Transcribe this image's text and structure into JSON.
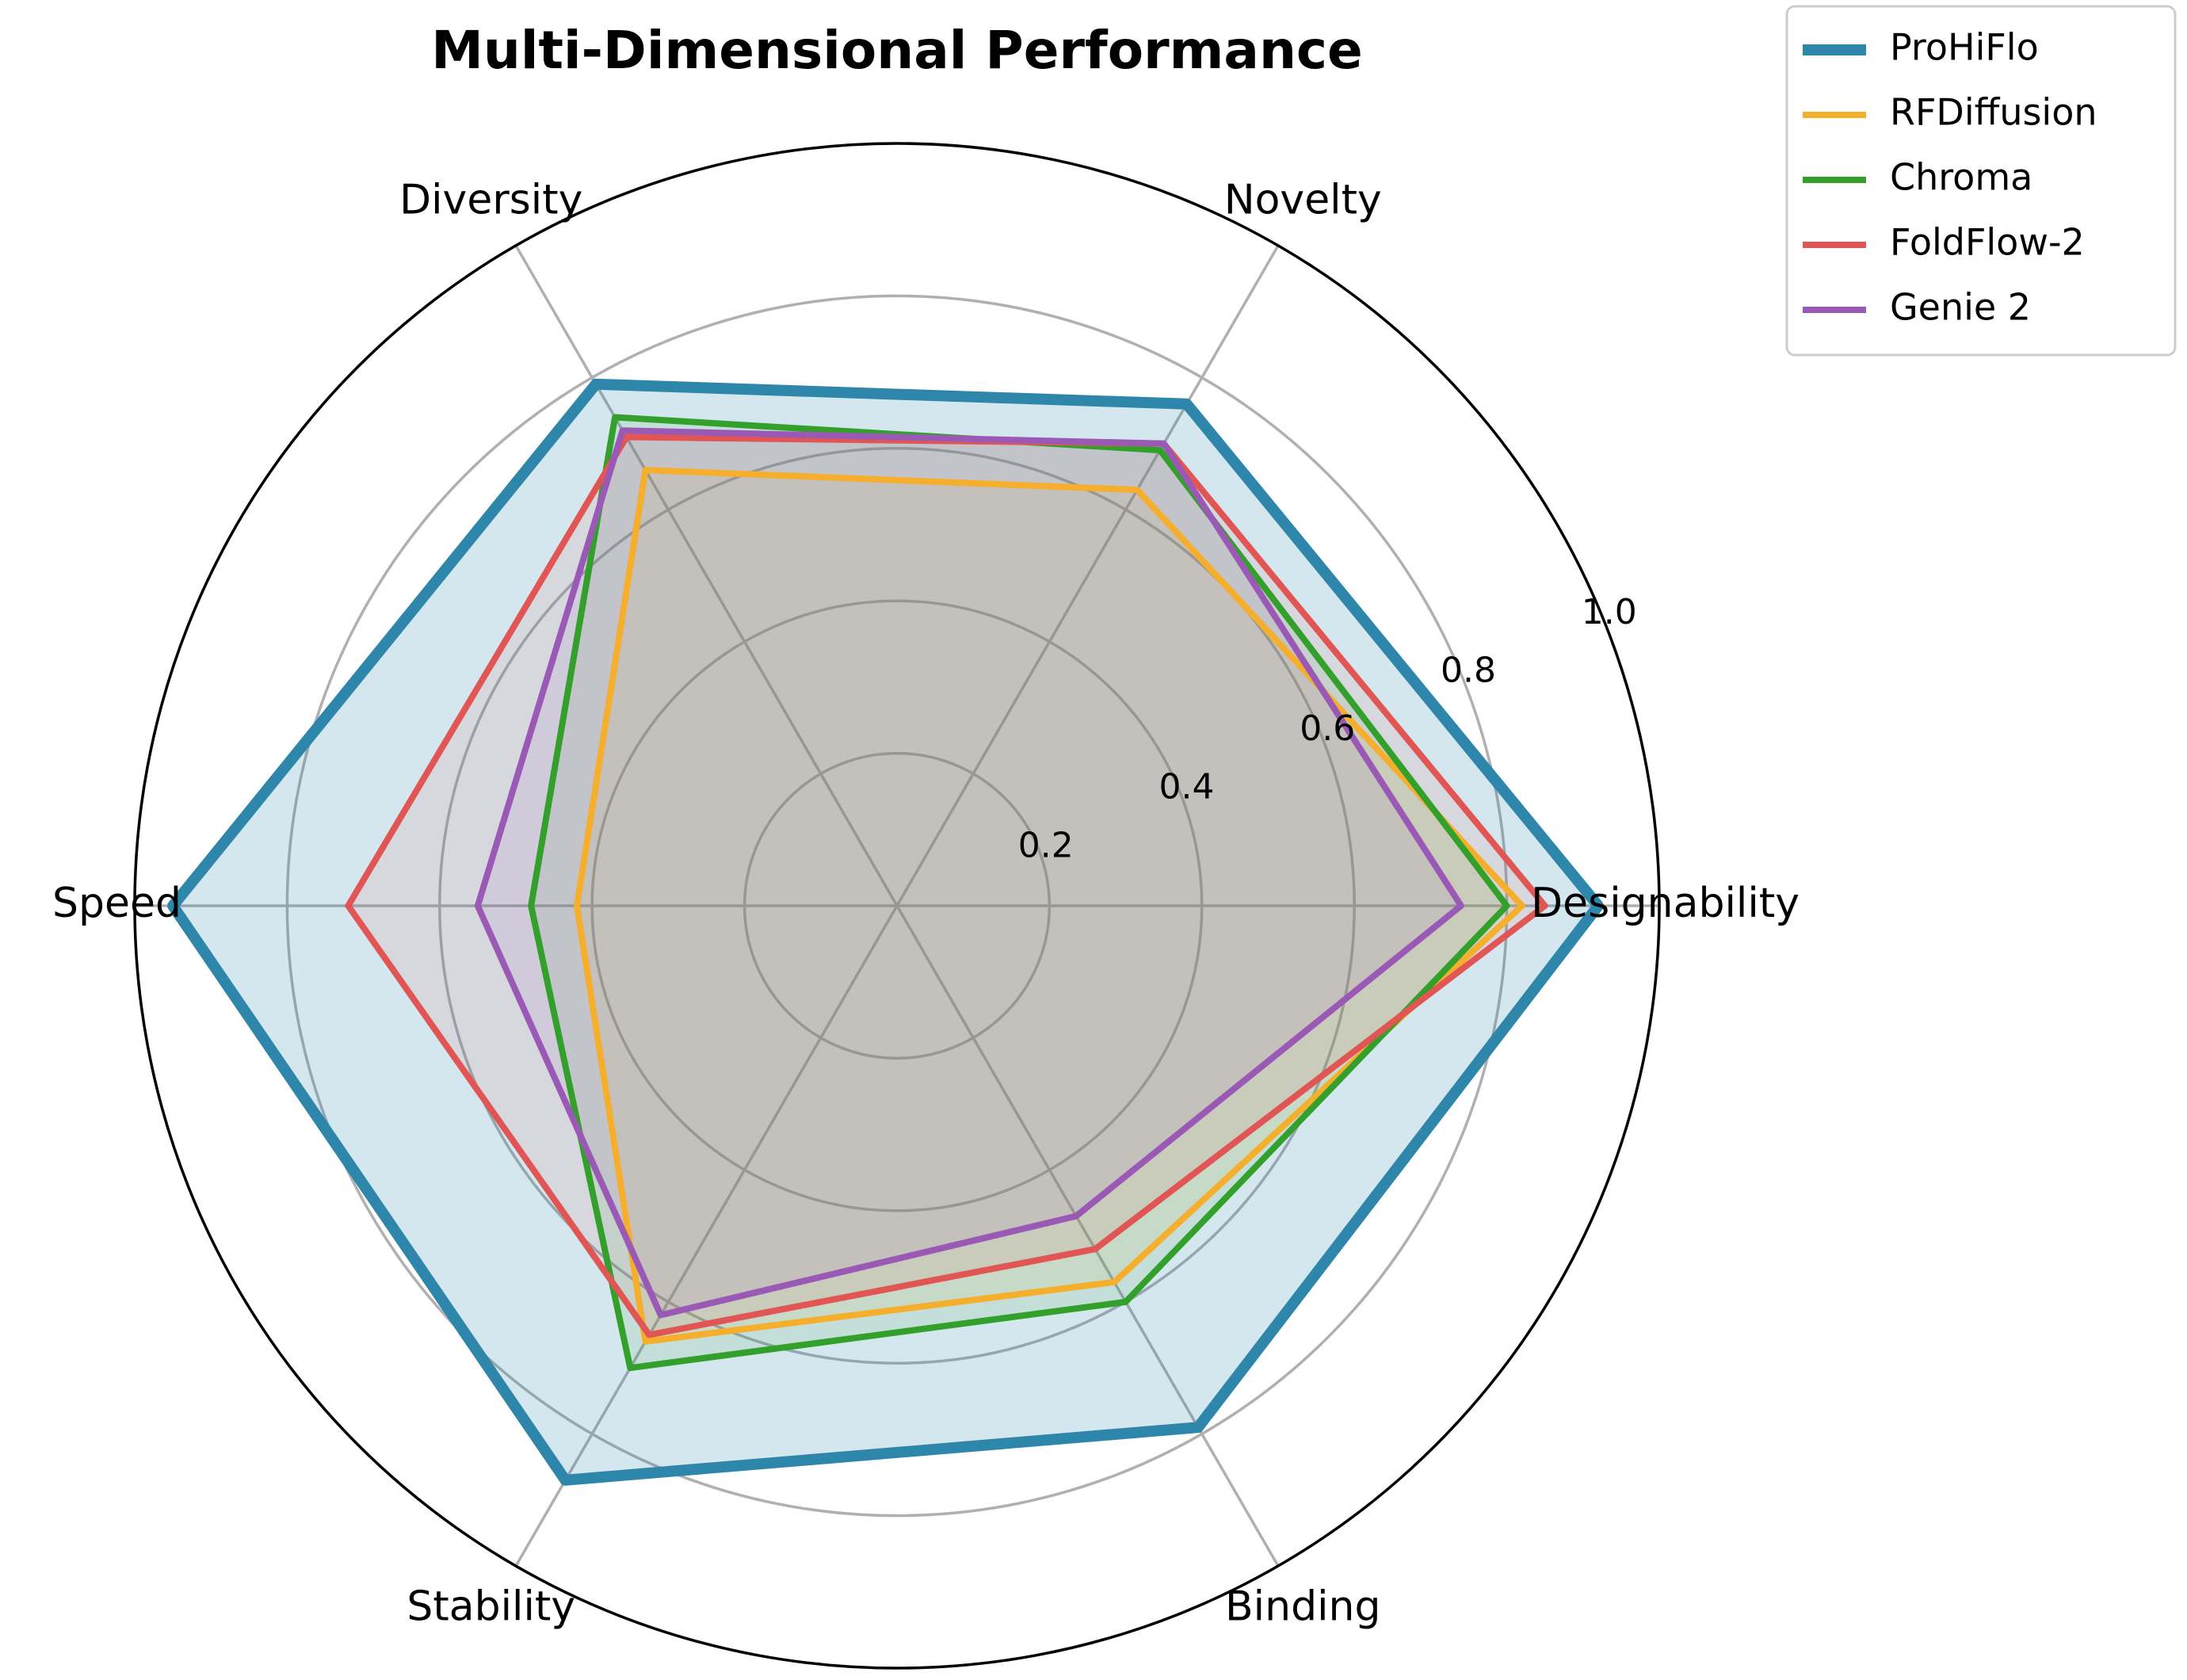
{
  "chart_data": {
    "type": "radar",
    "title": "Multi-Dimensional Performance",
    "axes": [
      "Designability",
      "Novelty",
      "Diversity",
      "Speed",
      "Stability",
      "Binding"
    ],
    "rlim": [
      0,
      1.0
    ],
    "rticks": [
      0.2,
      0.4,
      0.6,
      0.8,
      1.0
    ],
    "rtick_labels": [
      "0.2",
      "0.4",
      "0.6",
      "0.8",
      "1.0"
    ],
    "grid": true,
    "legend_position": "top-right",
    "series": [
      {
        "name": "ProHiFlo",
        "color": "#2E86AB",
        "values": [
          0.92,
          0.76,
          0.79,
          0.95,
          0.87,
          0.79
        ],
        "filled": true
      },
      {
        "name": "RFDiffusion",
        "color": "#F6AE2D",
        "values": [
          0.82,
          0.63,
          0.66,
          0.42,
          0.66,
          0.57
        ]
      },
      {
        "name": "Chroma",
        "color": "#33A02C",
        "values": [
          0.8,
          0.69,
          0.74,
          0.48,
          0.7,
          0.6
        ]
      },
      {
        "name": "FoldFlow-2",
        "color": "#E15554",
        "values": [
          0.85,
          0.7,
          0.71,
          0.72,
          0.65,
          0.52
        ]
      },
      {
        "name": "Genie 2",
        "color": "#9B59B6",
        "values": [
          0.74,
          0.7,
          0.72,
          0.55,
          0.62,
          0.47
        ]
      }
    ]
  }
}
